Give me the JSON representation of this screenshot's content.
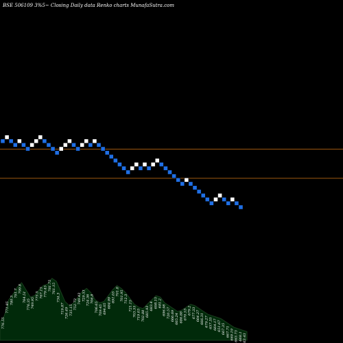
{
  "chart_data": {
    "type": "renko",
    "title": "BSE 506109 3%5~  Closing Daily data  Renko  charts MunafaSutra.com",
    "background": "#000000",
    "colors": {
      "up": "#ffffff",
      "down": "#1f6fe5",
      "resistance": "#a05a10",
      "volume_fill": "#012a0a",
      "volume_line": "#1b3d1e"
    },
    "reference_lines": [
      {
        "name": "upper",
        "price": 783.5
      },
      {
        "name": "lower",
        "price": 723.5
      }
    ],
    "bricks": [
      {
        "dir": "down",
        "price": 800
      },
      {
        "dir": "up",
        "price": 808
      },
      {
        "dir": "down",
        "price": 800
      },
      {
        "dir": "down",
        "price": 792
      },
      {
        "dir": "up",
        "price": 800
      },
      {
        "dir": "down",
        "price": 792
      },
      {
        "dir": "down",
        "price": 784
      },
      {
        "dir": "up",
        "price": 792
      },
      {
        "dir": "up",
        "price": 800
      },
      {
        "dir": "up",
        "price": 808
      },
      {
        "dir": "down",
        "price": 800
      },
      {
        "dir": "down",
        "price": 792
      },
      {
        "dir": "down",
        "price": 784
      },
      {
        "dir": "down",
        "price": 776
      },
      {
        "dir": "up",
        "price": 784
      },
      {
        "dir": "up",
        "price": 792
      },
      {
        "dir": "up",
        "price": 800
      },
      {
        "dir": "down",
        "price": 792
      },
      {
        "dir": "down",
        "price": 784
      },
      {
        "dir": "up",
        "price": 792
      },
      {
        "dir": "up",
        "price": 800
      },
      {
        "dir": "down",
        "price": 792
      },
      {
        "dir": "up",
        "price": 800
      },
      {
        "dir": "down",
        "price": 792
      },
      {
        "dir": "down",
        "price": 784
      },
      {
        "dir": "down",
        "price": 776
      },
      {
        "dir": "down",
        "price": 768
      },
      {
        "dir": "down",
        "price": 760
      },
      {
        "dir": "down",
        "price": 752
      },
      {
        "dir": "down",
        "price": 744
      },
      {
        "dir": "down",
        "price": 736
      },
      {
        "dir": "up",
        "price": 744
      },
      {
        "dir": "up",
        "price": 752
      },
      {
        "dir": "down",
        "price": 744
      },
      {
        "dir": "up",
        "price": 752
      },
      {
        "dir": "down",
        "price": 744
      },
      {
        "dir": "up",
        "price": 752
      },
      {
        "dir": "up",
        "price": 760
      },
      {
        "dir": "down",
        "price": 752
      },
      {
        "dir": "down",
        "price": 744
      },
      {
        "dir": "down",
        "price": 736
      },
      {
        "dir": "down",
        "price": 728
      },
      {
        "dir": "down",
        "price": 720
      },
      {
        "dir": "down",
        "price": 712
      },
      {
        "dir": "up",
        "price": 720
      },
      {
        "dir": "down",
        "price": 712
      },
      {
        "dir": "down",
        "price": 704
      },
      {
        "dir": "down",
        "price": 696
      },
      {
        "dir": "down",
        "price": 688
      },
      {
        "dir": "down",
        "price": 680
      },
      {
        "dir": "down",
        "price": 672
      },
      {
        "dir": "up",
        "price": 680
      },
      {
        "dir": "up",
        "price": 688
      },
      {
        "dir": "down",
        "price": 680
      },
      {
        "dir": "down",
        "price": 672
      },
      {
        "dir": "up",
        "price": 680
      },
      {
        "dir": "down",
        "price": 672
      },
      {
        "dir": "down",
        "price": 664
      }
    ],
    "volume_profile": [
      26,
      34,
      56,
      64,
      74,
      80,
      70,
      60,
      62,
      70,
      76,
      78,
      86,
      82,
      68,
      54,
      48,
      52,
      60,
      68,
      72,
      66,
      56,
      52,
      54,
      62,
      70,
      76,
      72,
      66,
      58,
      50,
      46,
      44,
      50,
      56,
      62,
      60,
      52,
      48,
      44,
      40,
      42,
      46,
      50,
      48,
      44,
      40,
      36,
      34,
      32,
      30,
      26,
      22,
      18,
      16,
      14,
      12
    ],
    "volume_labels": [
      "776.55",
      "771.85",
      "780.3",
      "791.7",
      "799.8",
      "764.51",
      "776.35",
      "749.95",
      "775.3",
      "767.15",
      "779.45",
      "781.75",
      "761.15",
      "734.3",
      "719.87",
      "726.49",
      "735.15",
      "752.73",
      "749.43",
      "729.53",
      "724.36",
      "706.8",
      "706.65",
      "709.45",
      "694.05",
      "684.99",
      "691.05",
      "701.8",
      "701.95",
      "712.3",
      "721.15",
      "703.55",
      "719.03",
      "702.88",
      "685.93",
      "683.4",
      "698.15",
      "681.2",
      "696.98",
      "720.57",
      "666.69",
      "665.24",
      "686.88",
      "670.53",
      "679.2",
      "677.33",
      "664.27",
      "666.31",
      "679.27",
      "657.35",
      "664.17",
      "651.67",
      "667.35",
      "667.71",
      "669.19",
      "663.73",
      "668.1",
      "663.43"
    ]
  }
}
